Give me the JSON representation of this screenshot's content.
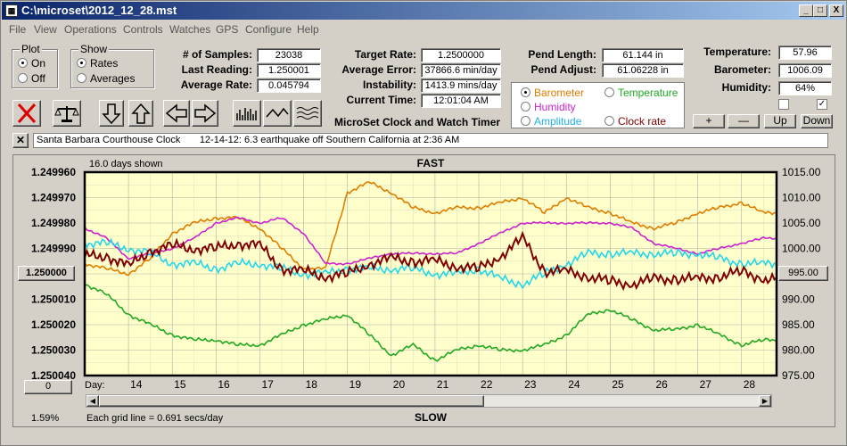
{
  "window": {
    "title": "C:\\microset\\2012_12_28.mst",
    "icon": "calculator-icon"
  },
  "menu": [
    "File",
    "View",
    "Operations",
    "Controls",
    "Watches",
    "GPS",
    "Configure",
    "Help"
  ],
  "plot": {
    "title": "Plot",
    "on": "On",
    "off": "Off",
    "selected": "On"
  },
  "show": {
    "title": "Show",
    "rates": "Rates",
    "averages": "Averages",
    "selected": "Rates"
  },
  "stats": {
    "samples_label": "# of Samples:",
    "samples": "23038",
    "last_label": "Last Reading:",
    "last": "1.250001",
    "avg_label": "Average Rate:",
    "avg": "0.045794",
    "target_label": "Target Rate:",
    "target": "1.2500000",
    "avgerr_label": "Average Error:",
    "avgerr": "37866.6 min/day",
    "instab_label": "Instability:",
    "instab": "1413.9 mins/day",
    "time_label": "Current Time:",
    "time": "12:01:04 AM",
    "pendlen_label": "Pend Length:",
    "pendlen": "61.144 in",
    "pendadj_label": "Pend Adjust:",
    "pendadj": "61.06228 in",
    "temp_label": "Temperature:",
    "temp": "57.96",
    "baro_label": "Barometer:",
    "baro": "1006.09",
    "hum_label": "Humidity:",
    "hum": "64%"
  },
  "app_title": "MicroSet Clock and Watch Timer",
  "overlay": {
    "barometer": "Barometer",
    "temperature": "Temperature",
    "humidity": "Humidity",
    "amplitude": "Amplitude",
    "clockrate": "Clock rate",
    "selected": "Barometer"
  },
  "buttons": {
    "plus": "+",
    "minus": "—",
    "up": "Up",
    "down": "Down"
  },
  "colors": {
    "barometer": "#e07d00",
    "temperature": "#22a822",
    "humidity": "#cc22cc",
    "amplitude": "#22d8e8",
    "clockrate": "#800000",
    "plot_bg": "#ffffcc"
  },
  "note": "Santa Barbara Courthouse Clock       12-14-12: 6.3 earthquake off Southern California at 2:36 AM",
  "chart": {
    "days_shown": "16.0 days shown",
    "top": "FAST",
    "bottom": "SLOW",
    "grid_note": "Each grid line = 0.691 secs/day",
    "pct": "1.59%",
    "day_label": "Day:",
    "center_value": "1.250000",
    "right_value": "995.00",
    "left_button": "0"
  },
  "chart_data": {
    "type": "line",
    "x": [
      13,
      13.5,
      14,
      14.5,
      15,
      15.5,
      16,
      16.5,
      17,
      17.5,
      18,
      18.5,
      19,
      19.5,
      20,
      20.5,
      21,
      21.5,
      22,
      22.5,
      23,
      23.5,
      24,
      24.5,
      25,
      25.5,
      26,
      26.5,
      27,
      27.5,
      28,
      28.5
    ],
    "x_ticks": [
      "14",
      "15",
      "16",
      "17",
      "18",
      "19",
      "20",
      "21",
      "22",
      "23",
      "24",
      "25",
      "26",
      "27",
      "28"
    ],
    "xlim": [
      13,
      28.8
    ],
    "y_left_ticks": [
      "1.249960",
      "1.249970",
      "1.249980",
      "1.249990",
      "1.250000",
      "1.250010",
      "1.250020",
      "1.250030",
      "1.250040"
    ],
    "y_left_lim": [
      1.24996,
      1.25004
    ],
    "y_right_ticks": [
      "1015.00",
      "1010.00",
      "1005.00",
      "1000.00",
      "995.00",
      "990.00",
      "985.00",
      "980.00",
      "975.00"
    ],
    "y_right_lim": [
      975,
      1015
    ],
    "series": [
      {
        "key": "barometer",
        "values": [
          997,
          996,
          995,
          998,
          1003,
          1005,
          1006,
          1006,
          1004,
          1000,
          996,
          996,
          1011,
          1013,
          1011,
          1008,
          1007,
          1008,
          1008,
          1009,
          1010,
          1007,
          1010,
          1008,
          1007,
          1005,
          1004,
          1005,
          1007,
          1008,
          1009,
          1007
        ]
      },
      {
        "key": "temperature",
        "values": [
          993,
          991,
          987,
          985,
          983,
          982,
          982,
          981,
          981,
          983,
          985,
          986,
          987,
          983,
          979,
          981,
          978,
          980,
          981,
          980,
          980,
          981,
          983,
          987,
          988,
          986,
          984,
          984,
          985,
          983,
          981,
          982
        ]
      },
      {
        "key": "humidity",
        "values": [
          1004,
          1002,
          998,
          999,
          1000,
          1002,
          1005,
          1006,
          1005,
          1006,
          1003,
          997,
          997,
          998,
          999,
          999,
          999,
          999,
          1001,
          1003,
          1005,
          1005,
          1005,
          1005,
          1005,
          1004,
          1001,
          1000,
          999,
          1000,
          1001,
          1002
        ]
      },
      {
        "key": "amplitude",
        "values": [
          1001,
          1001,
          1000,
          999,
          997,
          997,
          996,
          997,
          997,
          996,
          995,
          995,
          996,
          996,
          996,
          996,
          995,
          995,
          996,
          994,
          993,
          995,
          997,
          999,
          999,
          999,
          999,
          999,
          999,
          998,
          997,
          997
        ]
      },
      {
        "key": "clockrate",
        "values": [
          1.249993,
          1.249993,
          1.249997,
          1.249991,
          1.249989,
          1.24999,
          1.24999,
          1.249988,
          1.249989,
          1.249998,
          1.249999,
          1.250001,
          1.25,
          1.249996,
          1.249994,
          1.249995,
          1.249995,
          1.249997,
          1.249998,
          1.249993,
          1.249986,
          1.249999,
          1.249999,
          1.250001,
          1.250003,
          1.250004,
          1.250002,
          1.250002,
          1.250002,
          1.250001,
          1.249999,
          1.250002
        ]
      }
    ]
  }
}
